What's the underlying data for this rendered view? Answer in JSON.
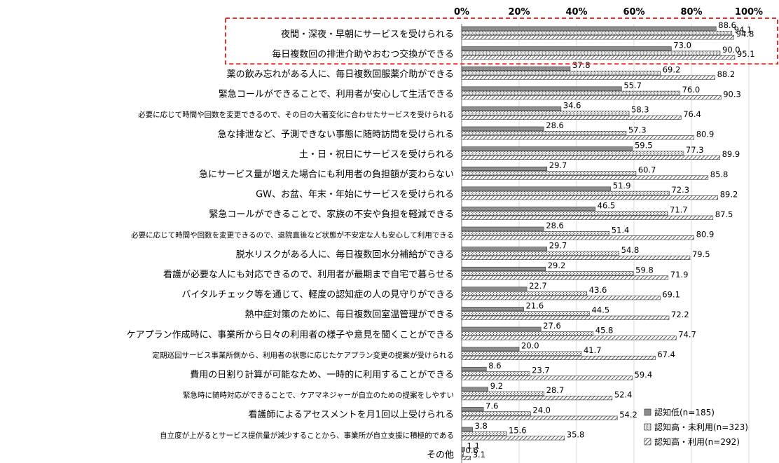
{
  "chart_data": {
    "type": "bar",
    "orientation": "horizontal",
    "xlim": [
      0,
      100
    ],
    "x_ticks": [
      "0%",
      "20%",
      "40%",
      "60%",
      "80%",
      "100%"
    ],
    "grid": true,
    "legend_position": "bottom-right",
    "highlight": {
      "style": "red dashed box",
      "categories": [
        0,
        1
      ]
    },
    "categories": [
      "夜間・深夜・早朝にサービスを受けられる",
      "毎日複数回の排泄介助やおむつ交換ができる",
      "薬の飲み忘れがある人に、毎日複数回服薬介助ができる",
      "緊急コールができることで、利用者が安心して生活できる",
      "必要に応じて時間や回数を変更できるので、その日の大著変化に合わせたサービスを受けられる",
      "急な排泄など、予測できない事態に随時訪問を受けられる",
      "土・日・祝日にサービスを受けられる",
      "急にサービス量が増えた場合にも利用者の負担額が変わらない",
      "GW、お盆、年末・年始にサービスを受けられる",
      "緊急コールができることで、家族の不安や負担を軽減できる",
      "必要に応じて時間や回数を変更できるので、退院直後など状態が不安定な人も安心して利用できる",
      "脱水リスクがある人に、毎日複数回水分補給ができる",
      "看護が必要な人にも対応できるので、利用者が最期まで自宅で暮らせる",
      "バイタルチェック等を通じて、軽度の認知症の人の見守りができる",
      "熱中症対策のために、毎日複数回室温管理ができる",
      "ケアプラン作成時に、事業所から日々の利用者の様子や意見を聞くことができる",
      "定期巡回サービス事業所側から、利用者の状態に応じたケアプラン変更の提案が受けられる",
      "費用の日割り計算が可能なため、一時的に利用することができる",
      "緊急時に随時対応ができることで、ケアマネジャーが自立のための提案をしやすい",
      "看護師によるアセスメントを月1回以上受けられる",
      "自立度が上がるとサービス提供量が減少することから、事業所が自立支援に積極的である",
      "その他"
    ],
    "series": [
      {
        "name": "認知低(n=185)",
        "pattern": "solid-gray",
        "values": [
          88.6,
          73.0,
          37.8,
          55.7,
          34.6,
          28.6,
          59.5,
          29.7,
          51.9,
          46.5,
          28.6,
          29.7,
          29.2,
          22.7,
          21.6,
          27.6,
          20.0,
          8.6,
          9.2,
          7.6,
          3.8,
          1.1
        ]
      },
      {
        "name": "認知高・未利用(n=323)",
        "pattern": "dots",
        "values": [
          94.1,
          90.0,
          69.2,
          76.0,
          58.3,
          57.3,
          77.3,
          60.7,
          72.3,
          71.7,
          51.4,
          54.8,
          59.8,
          43.6,
          44.5,
          45.8,
          41.7,
          23.7,
          28.7,
          24.0,
          15.6,
          0.6
        ]
      },
      {
        "name": "認知高・利用(n=292)",
        "pattern": "diagonal",
        "values": [
          94.8,
          95.1,
          88.2,
          90.3,
          76.4,
          80.9,
          89.9,
          85.8,
          89.2,
          87.5,
          80.9,
          79.5,
          71.9,
          69.1,
          72.2,
          74.7,
          67.4,
          59.4,
          52.4,
          54.2,
          35.8,
          3.1
        ]
      }
    ]
  }
}
